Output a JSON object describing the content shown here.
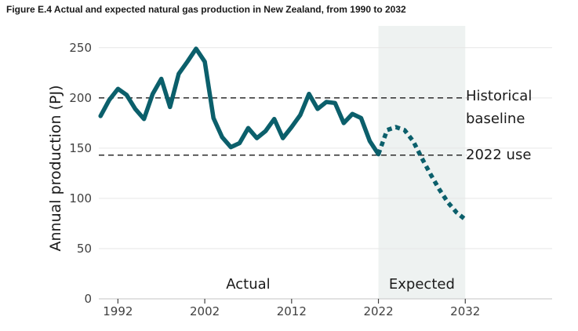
{
  "title": "Figure E.4 Actual and expected natural gas production in New Zealand, from 1990 to 2032",
  "chart_data": {
    "type": "line",
    "title": "Figure E.4 Actual and expected natural gas production in New Zealand, from 1990 to 2032",
    "xlabel": "",
    "ylabel": "Annual production (PJ)",
    "xlim": [
      1989.8,
      2042
    ],
    "ylim": [
      0,
      260
    ],
    "x_ticks": [
      1992,
      2002,
      2012,
      2022,
      2032
    ],
    "x_tick_labels": [
      "1992",
      "2002",
      "2012",
      "2022",
      "2032"
    ],
    "y_ticks": [
      0,
      50,
      100,
      150,
      200,
      250
    ],
    "y_tick_labels": [
      "0",
      "50",
      "100",
      "150",
      "200",
      "250"
    ],
    "grid": "horizontal",
    "legend": "none",
    "shaded_region": {
      "x": [
        2022,
        2032
      ],
      "label": "Expected",
      "color": "#eef2f1"
    },
    "region_labels": [
      {
        "text": "Actual",
        "x": 2007,
        "y": 15
      },
      {
        "text": "Expected",
        "x": 2027,
        "y": 15
      }
    ],
    "reference_lines": [
      {
        "y": 200,
        "label_lines": [
          "Historical",
          "baseline"
        ]
      },
      {
        "y": 143,
        "label_lines": [
          "2022 use"
        ]
      }
    ],
    "series": [
      {
        "style": "solid",
        "color": "#0b5f6b",
        "x": [
          1990,
          1991,
          1992,
          1993,
          1994,
          1995,
          1996,
          1997,
          1998,
          1999,
          2000,
          2001,
          2002,
          2003,
          2004,
          2005,
          2006,
          2007,
          2008,
          2009,
          2010,
          2011,
          2012,
          2013,
          2014,
          2015,
          2016,
          2017,
          2018,
          2019,
          2020,
          2021,
          2022
        ],
        "y": [
          182,
          198,
          209,
          203,
          189,
          179,
          204,
          219,
          191,
          224,
          236,
          249,
          236,
          180,
          161,
          151,
          155,
          170,
          160,
          167,
          179,
          160,
          171,
          183,
          204,
          189,
          196,
          195,
          175,
          184,
          180,
          157,
          144
        ]
      },
      {
        "style": "dotted",
        "color": "#0b5f6b",
        "x": [
          2022,
          2023,
          2024,
          2025,
          2026,
          2027,
          2028,
          2029,
          2030,
          2031,
          2032
        ],
        "y": [
          144,
          168,
          171,
          168,
          157,
          140,
          124,
          109,
          96,
          86,
          79
        ]
      }
    ]
  }
}
